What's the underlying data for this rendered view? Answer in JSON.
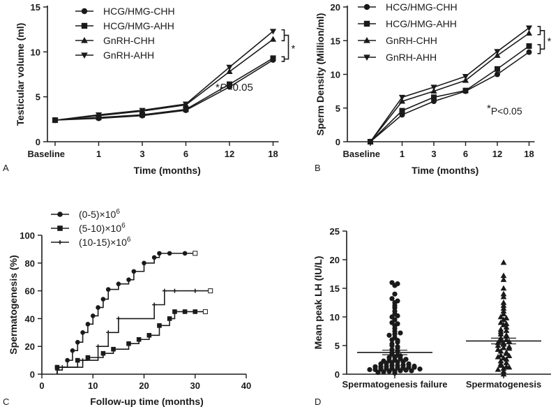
{
  "chart_data": [
    {
      "panel": "A",
      "type": "line",
      "xlabel": "Time (months)",
      "ylabel": "Testicular volume (ml)",
      "categories": [
        "Baseline",
        "1",
        "3",
        "6",
        "12",
        "18"
      ],
      "ylim": [
        0,
        15
      ],
      "yticks": [
        "0",
        "5",
        "10",
        "15"
      ],
      "series": [
        {
          "name": "HCG/HMG-CHH",
          "marker": "circle",
          "values": [
            2.4,
            2.6,
            2.9,
            3.5,
            6.1,
            9.1
          ]
        },
        {
          "name": "HCG/HMG-AHH",
          "marker": "square",
          "values": [
            2.4,
            2.7,
            3.0,
            3.6,
            6.4,
            9.3
          ]
        },
        {
          "name": "GnRH-CHH",
          "marker": "triangle-up",
          "values": [
            2.4,
            2.9,
            3.4,
            4.1,
            7.8,
            11.4
          ]
        },
        {
          "name": "GnRH-AHH",
          "marker": "triangle-down",
          "values": [
            2.4,
            3.0,
            3.5,
            4.2,
            8.3,
            12.3
          ]
        }
      ],
      "annotation": {
        "star": "*",
        "italic": "P",
        "rest": "<0.05"
      },
      "bracket_mark": "*"
    },
    {
      "panel": "B",
      "type": "line",
      "xlabel": "Time (months)",
      "ylabel": "Sperm Density (Million/ml)",
      "categories": [
        "Baseline",
        "1",
        "3",
        "6",
        "12",
        "18"
      ],
      "ylim": [
        0,
        20
      ],
      "yticks": [
        "0",
        "5",
        "10",
        "15",
        "20"
      ],
      "series": [
        {
          "name": "HCG/HMG-CHH",
          "marker": "circle",
          "values": [
            0,
            4.0,
            6.0,
            7.5,
            10.0,
            13.3
          ]
        },
        {
          "name": "HCG/HMG-AHH",
          "marker": "square",
          "values": [
            0,
            4.6,
            6.6,
            7.6,
            10.8,
            14.2
          ]
        },
        {
          "name": "GnRH-CHH",
          "marker": "triangle-up",
          "values": [
            0,
            6.0,
            7.5,
            9.1,
            12.8,
            16.1
          ]
        },
        {
          "name": "GnRH-AHH",
          "marker": "triangle-down",
          "values": [
            0,
            6.6,
            8.1,
            9.7,
            13.4,
            16.9
          ]
        }
      ],
      "annotation": {
        "star": "*",
        "rest": "P<0.05"
      },
      "bracket_mark": "*"
    },
    {
      "panel": "C",
      "type": "line",
      "subtype": "step",
      "xlabel": "Follow-up time (months)",
      "ylabel": "Spermatogenesis (%)",
      "xlim": [
        0,
        40
      ],
      "ylim": [
        0,
        100
      ],
      "xticks": [
        "0",
        "10",
        "20",
        "30",
        "40"
      ],
      "yticks": [
        "0",
        "20",
        "40",
        "60",
        "80",
        "100"
      ],
      "series": [
        {
          "name": "(0-5)×10",
          "sup": "6",
          "marker": "circle",
          "points": [
            [
              3,
              5
            ],
            [
              5,
              10
            ],
            [
              6,
              17
            ],
            [
              7,
              23
            ],
            [
              8,
              30
            ],
            [
              9,
              36
            ],
            [
              10,
              42
            ],
            [
              11,
              48
            ],
            [
              12,
              54
            ],
            [
              13,
              61
            ],
            [
              15,
              65
            ],
            [
              17,
              68
            ],
            [
              18,
              74
            ],
            [
              20,
              80
            ],
            [
              22,
              84
            ],
            [
              23,
              87
            ],
            [
              25,
              87
            ],
            [
              28,
              87
            ],
            [
              30,
              87
            ]
          ]
        },
        {
          "name": "(5-10)×10",
          "sup": "6",
          "marker": "square",
          "points": [
            [
              3,
              5
            ],
            [
              7,
              10
            ],
            [
              9,
              12
            ],
            [
              12,
              15
            ],
            [
              14,
              18
            ],
            [
              17,
              22
            ],
            [
              19,
              25
            ],
            [
              21,
              28
            ],
            [
              23,
              35
            ],
            [
              25,
              40
            ],
            [
              26,
              45
            ],
            [
              28,
              45
            ],
            [
              30,
              45
            ],
            [
              32,
              45
            ]
          ]
        },
        {
          "name": "(10-15)×10",
          "sup": "6",
          "marker": "plus",
          "points": [
            [
              3,
              3
            ],
            [
              4,
              5
            ],
            [
              8,
              10
            ],
            [
              11,
              20
            ],
            [
              13,
              30
            ],
            [
              15,
              40
            ],
            [
              22,
              50
            ],
            [
              24,
              60
            ],
            [
              26,
              60
            ],
            [
              30,
              60
            ],
            [
              33,
              60
            ]
          ]
        }
      ]
    },
    {
      "panel": "D",
      "type": "scatter",
      "subtype": "dot-plot",
      "ylabel": "Mean peak LH (IU/L)",
      "categories": [
        "Spermatogenesis failure",
        "Spermatogenesis"
      ],
      "ylim": [
        0,
        25
      ],
      "yticks": [
        "0",
        "5",
        "10",
        "15",
        "20",
        "25"
      ],
      "groups": [
        {
          "name": "Spermatogenesis failure",
          "marker": "circle",
          "mean": 3.8,
          "sem": 0.4,
          "values": [
            0.2,
            0.3,
            0.4,
            0.5,
            0.5,
            0.6,
            0.7,
            0.8,
            0.8,
            0.9,
            1.0,
            1.0,
            1.1,
            1.1,
            1.2,
            1.2,
            1.3,
            1.3,
            1.4,
            1.5,
            1.5,
            1.6,
            1.7,
            1.8,
            1.9,
            2.0,
            2.1,
            2.2,
            2.3,
            2.4,
            2.5,
            2.7,
            2.9,
            3.0,
            3.2,
            3.5,
            3.8,
            4.0,
            4.3,
            4.6,
            5.0,
            5.3,
            5.6,
            6.0,
            6.4,
            6.8,
            7.0,
            7.5,
            8.0,
            8.5,
            9.0,
            9.5,
            10.0,
            10.5,
            11.0,
            11.6,
            12.0,
            12.5,
            13.2,
            14.0,
            15.5,
            16.0,
            0.6,
            0.9,
            1.4,
            1.8,
            2.6,
            3.3,
            4.8,
            5.9,
            7.2,
            8.8,
            10.2,
            12.8,
            15.8
          ]
        },
        {
          "name": "Spermatogenesis",
          "marker": "triangle-up",
          "mean": 5.8,
          "sem": 0.5,
          "values": [
            0.0,
            0.5,
            0.8,
            1.0,
            1.2,
            1.5,
            1.8,
            2.0,
            2.3,
            2.6,
            3.0,
            3.3,
            3.6,
            4.0,
            4.3,
            4.6,
            5.0,
            5.2,
            5.5,
            5.8,
            6.0,
            6.3,
            6.6,
            7.0,
            7.4,
            7.8,
            8.2,
            8.6,
            9.0,
            9.5,
            10.0,
            10.5,
            11.0,
            11.5,
            12.0,
            12.5,
            13.5,
            14.0,
            15.0,
            16.5,
            17.2,
            19.5,
            1.3,
            2.8,
            3.8,
            4.8,
            5.4,
            6.8,
            7.6,
            8.8,
            9.8,
            3.2,
            4.5,
            5.7
          ]
        }
      ]
    }
  ],
  "panel_labels": [
    "A",
    "B",
    "C",
    "D"
  ]
}
